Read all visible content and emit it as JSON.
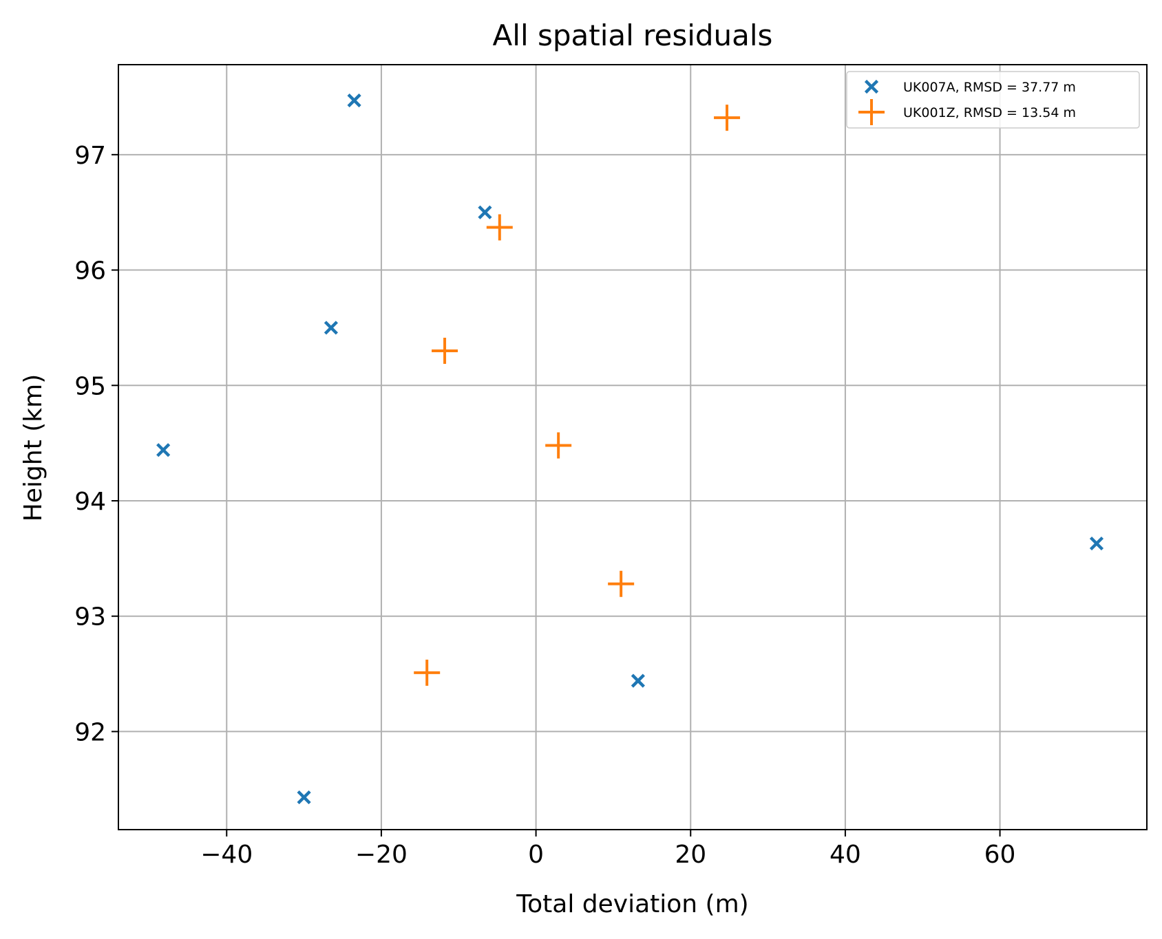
{
  "chart_data": {
    "type": "scatter",
    "title": "All spatial residuals",
    "xlabel": "Total deviation (m)",
    "ylabel": "Height (km)",
    "xlim": [
      -54,
      79
    ],
    "ylim": [
      91.15,
      97.78
    ],
    "xticks": [
      -40,
      -20,
      0,
      20,
      40,
      60
    ],
    "xtick_labels": [
      "−40",
      "−20",
      "0",
      "20",
      "40",
      "60"
    ],
    "yticks": [
      92,
      93,
      94,
      95,
      96,
      97
    ],
    "ytick_labels": [
      "92",
      "93",
      "94",
      "95",
      "96",
      "97"
    ],
    "grid": true,
    "legend_position": "top-right",
    "series": [
      {
        "name": "UK007A, RMSD = 37.77 m",
        "marker": "x",
        "color": "#1f77b4",
        "points": [
          {
            "x": -23.5,
            "y": 97.47
          },
          {
            "x": -6.6,
            "y": 96.5
          },
          {
            "x": -26.5,
            "y": 95.5
          },
          {
            "x": -48.2,
            "y": 94.44
          },
          {
            "x": 72.5,
            "y": 93.63
          },
          {
            "x": 13.2,
            "y": 92.44
          },
          {
            "x": -30.0,
            "y": 91.43
          }
        ]
      },
      {
        "name": "UK001Z, RMSD = 13.54 m",
        "marker": "+",
        "color": "#ff7f0e",
        "points": [
          {
            "x": 24.7,
            "y": 97.32
          },
          {
            "x": -4.7,
            "y": 96.37
          },
          {
            "x": -11.8,
            "y": 95.3
          },
          {
            "x": 2.9,
            "y": 94.48
          },
          {
            "x": 11.0,
            "y": 93.28
          },
          {
            "x": -14.1,
            "y": 92.51
          }
        ]
      }
    ]
  }
}
